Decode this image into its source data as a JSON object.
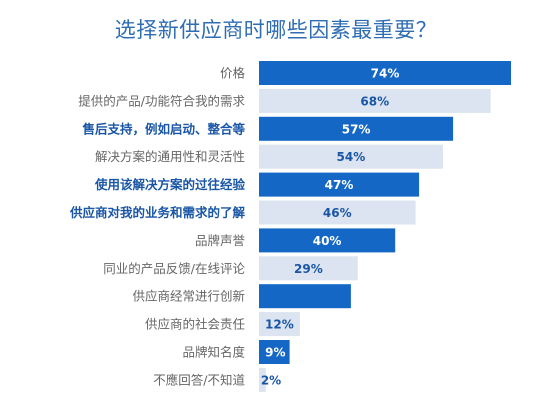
{
  "title": "选择新供应商时哪些因素最重要？",
  "colors": {
    "dark": "#1467c4",
    "light": "#dbe4f0",
    "title": "#2f6db3",
    "label_dark": "#1a56a6",
    "label_light": "#666666"
  },
  "chart_data": {
    "type": "bar",
    "orientation": "horizontal",
    "title": "选择新供应商时哪些因素最重要？",
    "xlim": [
      0,
      74
    ],
    "bars": [
      {
        "label": "价格",
        "value": 74,
        "value_label": "74%",
        "style": "dark",
        "label_emphasis": false
      },
      {
        "label": "提供的产品/功能符合我的需求",
        "value": 68,
        "value_label": "68%",
        "style": "light",
        "label_emphasis": false
      },
      {
        "label": "售后支持，例如启动、整合等",
        "value": 57,
        "value_label": "57%",
        "style": "dark",
        "label_emphasis": true
      },
      {
        "label": "解决方案的通用性和灵活性",
        "value": 54,
        "value_label": "54%",
        "style": "light",
        "label_emphasis": false
      },
      {
        "label": "使用该解决方案的过往经验",
        "value": 47,
        "value_label": "47%",
        "style": "dark",
        "label_emphasis": true
      },
      {
        "label": "供应商对我的业务和需求的了解",
        "value": 46,
        "value_label": "46%",
        "style": "light",
        "label_emphasis": true
      },
      {
        "label": "品牌声誉",
        "value": 40,
        "value_label": "40%",
        "style": "dark",
        "label_emphasis": false
      },
      {
        "label": "同业的产品反馈/在线评论",
        "value": 29,
        "value_label": "29%",
        "style": "light",
        "label_emphasis": false
      },
      {
        "label": "供应商经常进行创新",
        "value": 27,
        "value_label": "",
        "style": "dark",
        "label_emphasis": false
      },
      {
        "label": "供应商的社会责任",
        "value": 12,
        "value_label": "12%",
        "style": "light",
        "label_emphasis": false
      },
      {
        "label": "品牌知名度",
        "value": 9,
        "value_label": "9%",
        "style": "dark",
        "label_emphasis": false
      },
      {
        "label": "不應回答/不知道",
        "value": 2,
        "value_label": "2%",
        "style": "light",
        "label_emphasis": false
      }
    ]
  }
}
